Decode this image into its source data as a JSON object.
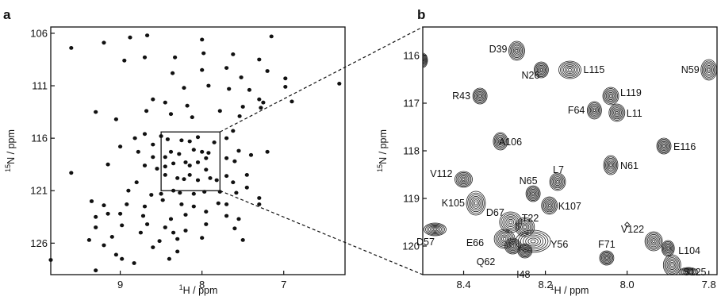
{
  "chart_data": [
    {
      "panel": "a",
      "type": "scatter",
      "xlabel_sup": "1",
      "xlabel": "H / ppm",
      "ylabel_sup": "15",
      "ylabel": "N / ppm",
      "x_reversed": true,
      "xlim": [
        9.85,
        6.25
      ],
      "ylim": [
        105.4,
        129.0
      ],
      "x_ticks": [
        9,
        8,
        7
      ],
      "y_ticks": [
        106,
        111,
        116,
        121,
        126
      ],
      "zoom_box": {
        "x": [
          8.5,
          7.78
        ],
        "y": [
          115.4,
          121.0
        ]
      },
      "points": [
        [
          9.6,
          107.4
        ],
        [
          9.2,
          106.9
        ],
        [
          8.88,
          106.4
        ],
        [
          8.67,
          106.2
        ],
        [
          8.0,
          106.6
        ],
        [
          7.15,
          106.3
        ],
        [
          8.7,
          108.3
        ],
        [
          8.95,
          108.6
        ],
        [
          8.33,
          108.3
        ],
        [
          7.98,
          107.9
        ],
        [
          7.62,
          108.0
        ],
        [
          7.3,
          108.5
        ],
        [
          8.36,
          109.8
        ],
        [
          8.0,
          109.5
        ],
        [
          7.7,
          109.3
        ],
        [
          7.52,
          110.2
        ],
        [
          7.2,
          109.6
        ],
        [
          6.98,
          110.3
        ],
        [
          6.32,
          110.8
        ],
        [
          8.22,
          111.2
        ],
        [
          7.92,
          111.0
        ],
        [
          7.67,
          111.3
        ],
        [
          7.42,
          111.4
        ],
        [
          6.98,
          111.1
        ],
        [
          8.45,
          112.6
        ],
        [
          8.6,
          112.3
        ],
        [
          8.18,
          112.9
        ],
        [
          7.78,
          113.4
        ],
        [
          7.5,
          113.0
        ],
        [
          7.25,
          112.6
        ],
        [
          6.9,
          112.5
        ],
        [
          8.68,
          113.4
        ],
        [
          8.38,
          113.7
        ],
        [
          9.3,
          113.5
        ],
        [
          9.05,
          114.2
        ],
        [
          8.12,
          114.0
        ],
        [
          7.54,
          113.9
        ],
        [
          7.3,
          112.3
        ],
        [
          7.28,
          113.1
        ],
        [
          8.5,
          115.8
        ],
        [
          8.7,
          115.6
        ],
        [
          8.42,
          116.1
        ],
        [
          8.25,
          116.2
        ],
        [
          8.15,
          116.3
        ],
        [
          8.05,
          115.9
        ],
        [
          7.85,
          116.4
        ],
        [
          7.62,
          115.3
        ],
        [
          7.7,
          116.0
        ],
        [
          8.82,
          116.0
        ],
        [
          8.6,
          116.6
        ],
        [
          9.0,
          116.8
        ],
        [
          8.38,
          117.3
        ],
        [
          8.28,
          117.5
        ],
        [
          8.1,
          117.1
        ],
        [
          8.0,
          117.3
        ],
        [
          7.92,
          117.4
        ],
        [
          8.6,
          117.8
        ],
        [
          8.45,
          117.8
        ],
        [
          7.7,
          117.9
        ],
        [
          7.55,
          117.2
        ],
        [
          7.4,
          117.6
        ],
        [
          7.2,
          117.3
        ],
        [
          8.78,
          117.3
        ],
        [
          8.35,
          118.4
        ],
        [
          8.2,
          118.3
        ],
        [
          8.15,
          118.6
        ],
        [
          8.05,
          118.3
        ],
        [
          7.95,
          117.9
        ],
        [
          7.6,
          118.2
        ],
        [
          8.7,
          118.6
        ],
        [
          8.55,
          118.9
        ],
        [
          9.15,
          118.5
        ],
        [
          8.45,
          119.5
        ],
        [
          8.3,
          119.8
        ],
        [
          8.22,
          119.9
        ],
        [
          8.15,
          119.5
        ],
        [
          8.05,
          120.0
        ],
        [
          7.9,
          119.8
        ],
        [
          7.82,
          120.0
        ],
        [
          7.7,
          119.6
        ],
        [
          7.45,
          119.5
        ],
        [
          7.95,
          119.0
        ],
        [
          8.45,
          118.7
        ],
        [
          9.6,
          119.3
        ],
        [
          8.8,
          120.2
        ],
        [
          8.9,
          121.0
        ],
        [
          8.62,
          121.4
        ],
        [
          8.5,
          121.3
        ],
        [
          8.35,
          121.0
        ],
        [
          8.27,
          121.2
        ],
        [
          8.1,
          121.3
        ],
        [
          7.97,
          121.1
        ],
        [
          7.78,
          121.1
        ],
        [
          7.58,
          121.2
        ],
        [
          7.45,
          120.7
        ],
        [
          7.3,
          121.7
        ],
        [
          7.62,
          120.2
        ],
        [
          8.92,
          122.3
        ],
        [
          8.7,
          122.5
        ],
        [
          8.48,
          121.9
        ],
        [
          8.25,
          122.3
        ],
        [
          8.1,
          122.5
        ],
        [
          7.8,
          122.2
        ],
        [
          7.7,
          122.3
        ],
        [
          7.3,
          122.3
        ],
        [
          9.35,
          122.0
        ],
        [
          9.2,
          122.4
        ],
        [
          9.0,
          123.2
        ],
        [
          8.72,
          123.4
        ],
        [
          8.38,
          123.7
        ],
        [
          8.2,
          123.3
        ],
        [
          7.95,
          123.0
        ],
        [
          7.7,
          123.4
        ],
        [
          7.55,
          123.7
        ],
        [
          9.3,
          123.5
        ],
        [
          9.15,
          123.2
        ],
        [
          8.98,
          124.3
        ],
        [
          8.67,
          124.2
        ],
        [
          8.45,
          124.5
        ],
        [
          8.35,
          125.0
        ],
        [
          8.2,
          124.8
        ],
        [
          7.95,
          124.2
        ],
        [
          7.6,
          124.6
        ],
        [
          9.3,
          124.5
        ],
        [
          8.75,
          125.0
        ],
        [
          8.52,
          125.8
        ],
        [
          8.3,
          125.6
        ],
        [
          8.0,
          125.5
        ],
        [
          7.5,
          125.7
        ],
        [
          9.1,
          125.4
        ],
        [
          8.6,
          126.4
        ],
        [
          8.3,
          126.8
        ],
        [
          8.4,
          127.5
        ],
        [
          9.2,
          126.2
        ],
        [
          9.38,
          125.7
        ],
        [
          9.05,
          127.1
        ],
        [
          8.98,
          127.5
        ],
        [
          8.83,
          127.9
        ],
        [
          9.85,
          127.6
        ],
        [
          9.3,
          128.6
        ]
      ]
    },
    {
      "panel": "b",
      "type": "scatter",
      "xlabel_sup": "1",
      "xlabel": "H / ppm",
      "ylabel_sup": "15",
      "ylabel": "N / ppm",
      "x_reversed": true,
      "xlim": [
        8.5,
        7.78
      ],
      "ylim": [
        115.4,
        120.6
      ],
      "x_ticks": [
        "8.4",
        "8.2",
        "8.0",
        "7.8"
      ],
      "y_ticks": [
        116,
        117,
        118,
        119,
        120
      ],
      "peaks": [
        {
          "label": "D39",
          "x": 8.27,
          "y": 115.9,
          "rx": 10,
          "ry": 12
        },
        {
          "label": "N26",
          "x": 8.21,
          "y": 116.3,
          "rx": 9,
          "ry": 10
        },
        {
          "label": "L115",
          "x": 8.14,
          "y": 116.3,
          "rx": 14,
          "ry": 11
        },
        {
          "label": "N59",
          "x": 7.8,
          "y": 116.3,
          "rx": 10,
          "ry": 13
        },
        {
          "label": "R43",
          "x": 8.36,
          "y": 116.85,
          "rx": 9,
          "ry": 10
        },
        {
          "label": "L119",
          "x": 8.04,
          "y": 116.85,
          "rx": 10,
          "ry": 11
        },
        {
          "label": "F64",
          "x": 8.08,
          "y": 117.15,
          "rx": 9,
          "ry": 11
        },
        {
          "label": "L11",
          "x": 8.025,
          "y": 117.2,
          "rx": 10,
          "ry": 11
        },
        {
          "label": "A106",
          "x": 8.31,
          "y": 117.8,
          "rx": 9,
          "ry": 11
        },
        {
          "label": "E116",
          "x": 7.91,
          "y": 117.9,
          "rx": 9,
          "ry": 10
        },
        {
          "label": "N61",
          "x": 8.04,
          "y": 118.3,
          "rx": 9,
          "ry": 12
        },
        {
          "label": "L7",
          "x": 8.17,
          "y": 118.65,
          "rx": 10,
          "ry": 11
        },
        {
          "label": "V112",
          "x": 8.4,
          "y": 118.6,
          "rx": 11,
          "ry": 10
        },
        {
          "label": "N65",
          "x": 8.23,
          "y": 118.9,
          "rx": 9,
          "ry": 10
        },
        {
          "label": "K107",
          "x": 8.19,
          "y": 119.15,
          "rx": 10,
          "ry": 11
        },
        {
          "label": "K105",
          "x": 8.37,
          "y": 119.1,
          "rx": 12,
          "ry": 15
        },
        {
          "label": "D67",
          "x": 8.285,
          "y": 119.5,
          "rx": 14,
          "ry": 13
        },
        {
          "label": "T22",
          "x": 8.25,
          "y": 119.6,
          "rx": 12,
          "ry": 12
        },
        {
          "label": "Y56",
          "x": 8.23,
          "y": 119.9,
          "rx": 22,
          "ry": 14
        },
        {
          "label": "E66",
          "x": 8.3,
          "y": 119.85,
          "rx": 13,
          "ry": 12
        },
        {
          "label": "Q62",
          "x": 8.28,
          "y": 120.0,
          "rx": 10,
          "ry": 10
        },
        {
          "label": "I48",
          "x": 8.25,
          "y": 120.1,
          "rx": 9,
          "ry": 9
        },
        {
          "label": "D57",
          "x": 8.47,
          "y": 119.65,
          "rx": 14,
          "ry": 8
        },
        {
          "label": "F71",
          "x": 8.05,
          "y": 120.25,
          "rx": 9,
          "ry": 9
        },
        {
          "label": "V122",
          "x": 7.935,
          "y": 119.9,
          "rx": 11,
          "ry": 12
        },
        {
          "label": "L104",
          "x": 7.9,
          "y": 120.05,
          "rx": 8,
          "ry": 10
        },
        {
          "label": "S125",
          "x": 7.89,
          "y": 120.4,
          "rx": 11,
          "ry": 13
        }
      ],
      "extra_peaks": [
        {
          "x": 8.5,
          "y": 116.1,
          "rx": 6,
          "ry": 9
        },
        {
          "x": 7.85,
          "y": 120.55,
          "rx": 12,
          "ry": 6
        }
      ],
      "marker": {
        "x": 8.0,
        "y": 119.55
      }
    }
  ]
}
